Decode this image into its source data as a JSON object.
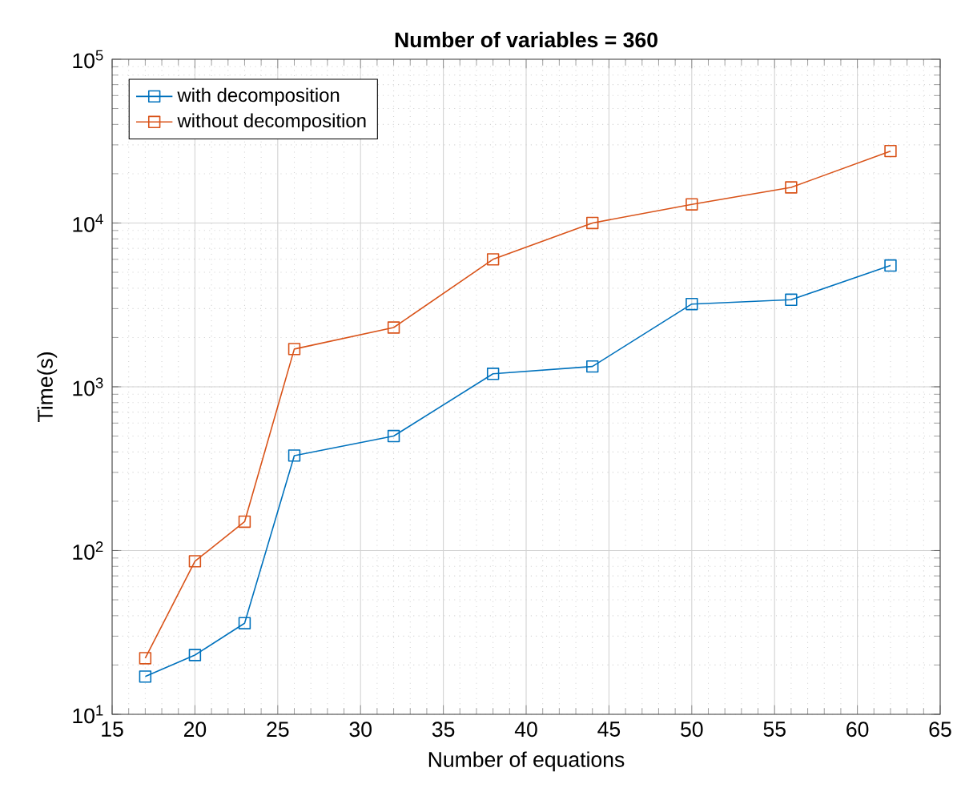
{
  "chart_data": {
    "type": "line",
    "title": "**Number of variables = 360**",
    "xlabel": "Number of equations",
    "ylabel": "Time(s)",
    "x": [
      17,
      20,
      23,
      26,
      32,
      38,
      44,
      50,
      56,
      62
    ],
    "series": [
      {
        "name": "with decomposition",
        "color": "#0072bd",
        "values": [
          17,
          23,
          36,
          380,
          500,
          1200,
          1330,
          3200,
          3400,
          5500
        ]
      },
      {
        "name": "without decomposition",
        "color": "#d95319",
        "values": [
          22,
          86,
          150,
          1700,
          2300,
          6000,
          10000,
          13000,
          16500,
          27500
        ]
      }
    ],
    "xlim": [
      15,
      65
    ],
    "xticks": [
      15,
      20,
      25,
      30,
      35,
      40,
      45,
      50,
      55,
      60,
      65
    ],
    "ylim": [
      10,
      100000
    ],
    "yticks": [
      {
        "value": 10,
        "label": "10$^{1}$"
      },
      {
        "value": 100,
        "label": "10$^{2}$"
      },
      {
        "value": 1000,
        "label": "10$^{3}$"
      },
      {
        "value": 10000,
        "label": "10$^{4}$"
      },
      {
        "value": 100000,
        "label": "10$^{5}$"
      }
    ],
    "log": "y",
    "grid": true,
    "legend": "top left",
    "marker": "square",
    "line_style": "solid"
  }
}
